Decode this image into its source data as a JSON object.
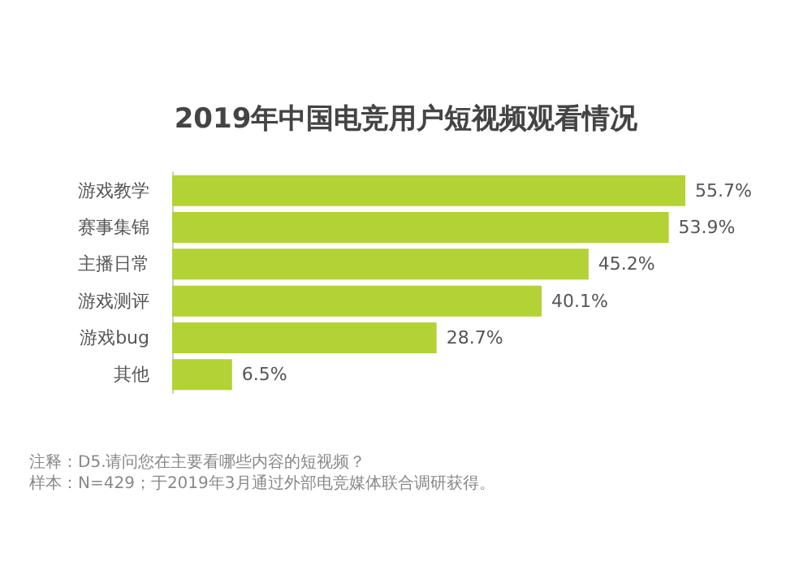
{
  "chart_data": {
    "type": "bar",
    "orientation": "horizontal",
    "title": "2019年中国电竞用户短视频观看情况",
    "categories": [
      "游戏教学",
      "赛事集锦",
      "主播日常",
      "游戏测评",
      "游戏bug",
      "其他"
    ],
    "values": [
      55.7,
      53.9,
      45.2,
      40.1,
      28.7,
      6.5
    ],
    "value_labels": [
      "55.7%",
      "53.9%",
      "45.2%",
      "40.1%",
      "28.7%",
      "6.5%"
    ],
    "color": "#b2d235",
    "annotations": [
      "注释：D5.请问您在主要看哪些内容的短视频？",
      "样本：N=429；于2019年3月通过外部电竞媒体联合调研获得。"
    ]
  }
}
